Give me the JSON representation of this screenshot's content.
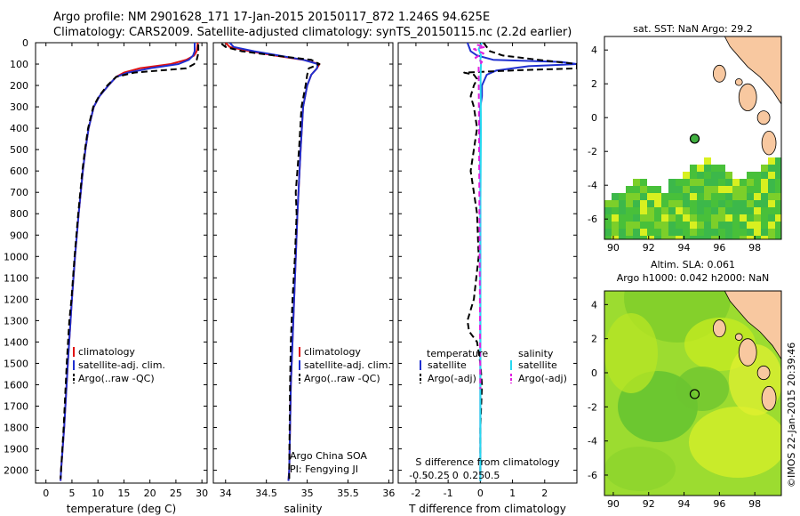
{
  "header": {
    "line1": "Argo profile: NM 2901628_171 17-Jan-2015 20150117_872 1.246S 94.625E",
    "line2": "Climatology: CARS2009. Satellite-adjusted climatology: synTS_20150115.nc (2.2d earlier)"
  },
  "colors": {
    "clim": "#e01010",
    "sat": "#1f2fd0",
    "argo": "#000000",
    "sat_s": "#28d8f0",
    "argo_s": "#e020e0",
    "land": "#f8c8a0"
  },
  "depth_ticks": [
    "0",
    "100",
    "200",
    "300",
    "400",
    "500",
    "600",
    "700",
    "800",
    "900",
    "1000",
    "1100",
    "1200",
    "1300",
    "1400",
    "1500",
    "1600",
    "1700",
    "1800",
    "1900",
    "2000"
  ],
  "chart_data": [
    {
      "type": "line",
      "title": "",
      "xlabel": "temperature (deg C)",
      "ylabel": "",
      "xlim": [
        -2,
        31
      ],
      "ylim": [
        2060,
        0
      ],
      "xticks": [
        "0",
        "5",
        "10",
        "15",
        "20",
        "25",
        "30"
      ],
      "xtick_values": [
        0,
        5,
        10,
        15,
        20,
        25,
        30
      ],
      "legend": [
        "climatology",
        "satellite-adj. clim.",
        "Argo(..raw -QC)"
      ],
      "series": [
        {
          "name": "climatology",
          "style": "clim",
          "depth": [
            0,
            40,
            60,
            80,
            100,
            120,
            140,
            160,
            200,
            250,
            300,
            400,
            500,
            600,
            800,
            1000,
            1200,
            1500,
            1800,
            2000,
            2050
          ],
          "values": [
            29.2,
            29.0,
            28.5,
            27,
            24,
            18,
            15,
            13.5,
            12,
            10.3,
            9.2,
            8.2,
            7.6,
            7.1,
            6.3,
            5.6,
            5.0,
            4.2,
            3.5,
            2.9,
            2.8
          ]
        },
        {
          "name": "satellite-adj. clim.",
          "style": "sat",
          "depth": [
            0,
            40,
            60,
            80,
            100,
            120,
            140,
            160,
            200,
            250,
            300,
            400,
            500,
            600,
            800,
            1000,
            1200,
            1500,
            1800,
            2000,
            2050
          ],
          "values": [
            28.6,
            28.6,
            28.3,
            27.5,
            25.5,
            20,
            15.8,
            13.5,
            12,
            10.3,
            9.2,
            8.2,
            7.6,
            7.1,
            6.3,
            5.6,
            5.0,
            4.2,
            3.5,
            2.9,
            2.8
          ]
        },
        {
          "name": "Argo(..raw -QC)",
          "style": "argo",
          "depth": [
            8,
            40,
            60,
            80,
            100,
            120,
            140,
            160,
            200,
            250,
            300,
            400,
            500,
            600,
            800,
            1000,
            1200,
            1300,
            1500,
            1800,
            2000,
            2040
          ],
          "values": [
            29.3,
            29.3,
            29.2,
            29.0,
            28.5,
            27,
            17,
            13.5,
            11.8,
            10.2,
            9.1,
            8.1,
            7.5,
            7.0,
            6.2,
            5.5,
            4.9,
            4.5,
            4.0,
            3.4,
            2.9,
            2.8
          ]
        }
      ]
    },
    {
      "type": "line",
      "title": "",
      "xlabel": "salinity",
      "ylabel": "",
      "xlim": [
        33.85,
        36.05
      ],
      "ylim": [
        2060,
        0
      ],
      "xticks": [
        "34",
        "34.5",
        "35",
        "35.5",
        "36"
      ],
      "xtick_values": [
        34,
        34.5,
        35,
        35.5,
        36
      ],
      "legend": [
        "climatology",
        "satellite-adj. clim.",
        "Argo(..raw -QC)"
      ],
      "annotation": [
        "Argo China SOA",
        "PI: Fengying JI"
      ],
      "series": [
        {
          "name": "climatology",
          "style": "clim",
          "depth": [
            0,
            20,
            40,
            60,
            80,
            100,
            120,
            150,
            200,
            300,
            500,
            800,
            1200,
            1600,
            2000,
            2050
          ],
          "values": [
            34.0,
            34.05,
            34.3,
            34.6,
            34.95,
            35.15,
            35.12,
            35.05,
            35.0,
            34.95,
            34.92,
            34.88,
            34.84,
            34.8,
            34.78,
            34.77
          ]
        },
        {
          "name": "satellite-adj. clim.",
          "style": "sat",
          "depth": [
            0,
            20,
            40,
            60,
            80,
            100,
            120,
            150,
            200,
            300,
            500,
            800,
            1200,
            1600,
            2000,
            2050
          ],
          "values": [
            34.05,
            34.1,
            34.35,
            34.65,
            34.95,
            35.13,
            35.12,
            35.05,
            35.0,
            34.95,
            34.92,
            34.88,
            34.84,
            34.8,
            34.78,
            34.77
          ]
        },
        {
          "name": "Argo(..raw -QC)",
          "style": "argo",
          "depth": [
            5,
            20,
            40,
            60,
            80,
            100,
            120,
            150,
            200,
            300,
            500,
            700,
            800,
            1000,
            1200,
            1400,
            1600,
            2000,
            2040
          ],
          "values": [
            33.95,
            34.0,
            34.2,
            34.6,
            35.05,
            35.15,
            35.02,
            35.0,
            34.98,
            34.93,
            34.9,
            34.86,
            34.87,
            34.85,
            34.82,
            34.8,
            34.79,
            34.78,
            34.78
          ]
        }
      ]
    },
    {
      "type": "line",
      "title": "",
      "xlabel": "T difference from climatology",
      "ylabel": "",
      "xlim": [
        -2.55,
        3.0
      ],
      "ylim": [
        2060,
        0
      ],
      "xticks": [
        "-2",
        "-1",
        "0",
        "1",
        "2"
      ],
      "xtick_values": [
        -2,
        -1,
        0,
        1,
        2
      ],
      "top_label": "S difference from climatology",
      "sticks": [
        "-0.5",
        "-0.25",
        "0",
        "0.25",
        "0.5"
      ],
      "stick_values": [
        -0.5,
        -0.25,
        0,
        0.25,
        0.5
      ],
      "legend_left": [
        "temperature",
        "satellite",
        "Argo(-adj)"
      ],
      "legend_right": [
        "salinity",
        "satellite",
        "Argo(-adj)"
      ],
      "series": [
        {
          "name": "T satellite",
          "style": "sat",
          "depth": [
            0,
            40,
            60,
            80,
            90,
            100,
            110,
            130,
            150,
            200,
            250,
            300,
            400,
            600,
            800,
            1000,
            1200,
            1400,
            1600,
            1800,
            2000,
            2050
          ],
          "values": [
            -0.4,
            -0.3,
            -0.1,
            0.4,
            2.5,
            3.0,
            1.5,
            0.5,
            0.2,
            0.05,
            0.05,
            0,
            0,
            0,
            0,
            0,
            0,
            0,
            0,
            0,
            0,
            0
          ]
        },
        {
          "name": "T Argo(-adj)",
          "style": "argo",
          "depth": [
            0,
            40,
            60,
            80,
            100,
            120,
            130,
            140,
            150,
            170,
            200,
            250,
            300,
            400,
            500,
            600,
            700,
            800,
            1000,
            1200,
            1300,
            1350,
            1400,
            1500,
            1600,
            1800,
            2000,
            2040
          ],
          "values": [
            0.1,
            0.3,
            0.7,
            1.8,
            3.0,
            3.0,
            1.0,
            -0.5,
            -0.2,
            -0.1,
            -0.2,
            -0.3,
            -0.2,
            -0.1,
            -0.2,
            -0.3,
            -0.2,
            -0.1,
            -0.05,
            -0.2,
            -0.4,
            -0.35,
            -0.1,
            0,
            0.05,
            0,
            0,
            0
          ]
        },
        {
          "name": "S satellite",
          "style": "sat_s",
          "depth": [
            0,
            30,
            60,
            80,
            100,
            150,
            200,
            400,
            800,
            1200,
            1600,
            2000,
            2050
          ],
          "values": [
            0.05,
            -0.05,
            0.02,
            0,
            0.02,
            0.01,
            0.01,
            0.02,
            0.0,
            0.0,
            0.0,
            0.0,
            0.0
          ]
        },
        {
          "name": "S Argo(-adj)",
          "style": "argo_s",
          "depth": [
            10,
            20,
            30,
            50,
            70,
            90,
            110,
            1620
          ],
          "values": [
            -0.1,
            0.15,
            -0.2,
            0.1,
            -0.15,
            0.05,
            -0.05,
            0.0
          ]
        }
      ]
    },
    {
      "type": "heatmap",
      "title": "sat. SST: NaN Argo: 29.2",
      "xlim": [
        89.5,
        99.5
      ],
      "ylim": [
        -7.2,
        4.8
      ],
      "xticks": [
        "90",
        "92",
        "94",
        "96",
        "98"
      ],
      "xtick_values": [
        90,
        92,
        94,
        96,
        98
      ],
      "yticks": [
        "4",
        "2",
        "0",
        "-2",
        "-4",
        "-6"
      ],
      "ytick_values": [
        4,
        2,
        0,
        -2,
        -4,
        -6
      ],
      "marker": {
        "lon": 94.6,
        "lat": -1.25
      }
    },
    {
      "type": "heatmap",
      "title": "Altim. SLA: 0.061",
      "subtitle": "Argo h1000: 0.042 h2000: NaN",
      "xlim": [
        89.5,
        99.5
      ],
      "ylim": [
        -7.2,
        4.8
      ],
      "xticks": [
        "90",
        "92",
        "94",
        "96",
        "98"
      ],
      "xtick_values": [
        90,
        92,
        94,
        96,
        98
      ],
      "yticks": [
        "4",
        "2",
        "0",
        "-2",
        "-4",
        "-6"
      ],
      "ytick_values": [
        4,
        2,
        0,
        -2,
        -4,
        -6
      ],
      "marker": {
        "lon": 94.6,
        "lat": -1.25
      }
    }
  ],
  "credit": "©IMOS 22-Jan-2015 20:39:46"
}
